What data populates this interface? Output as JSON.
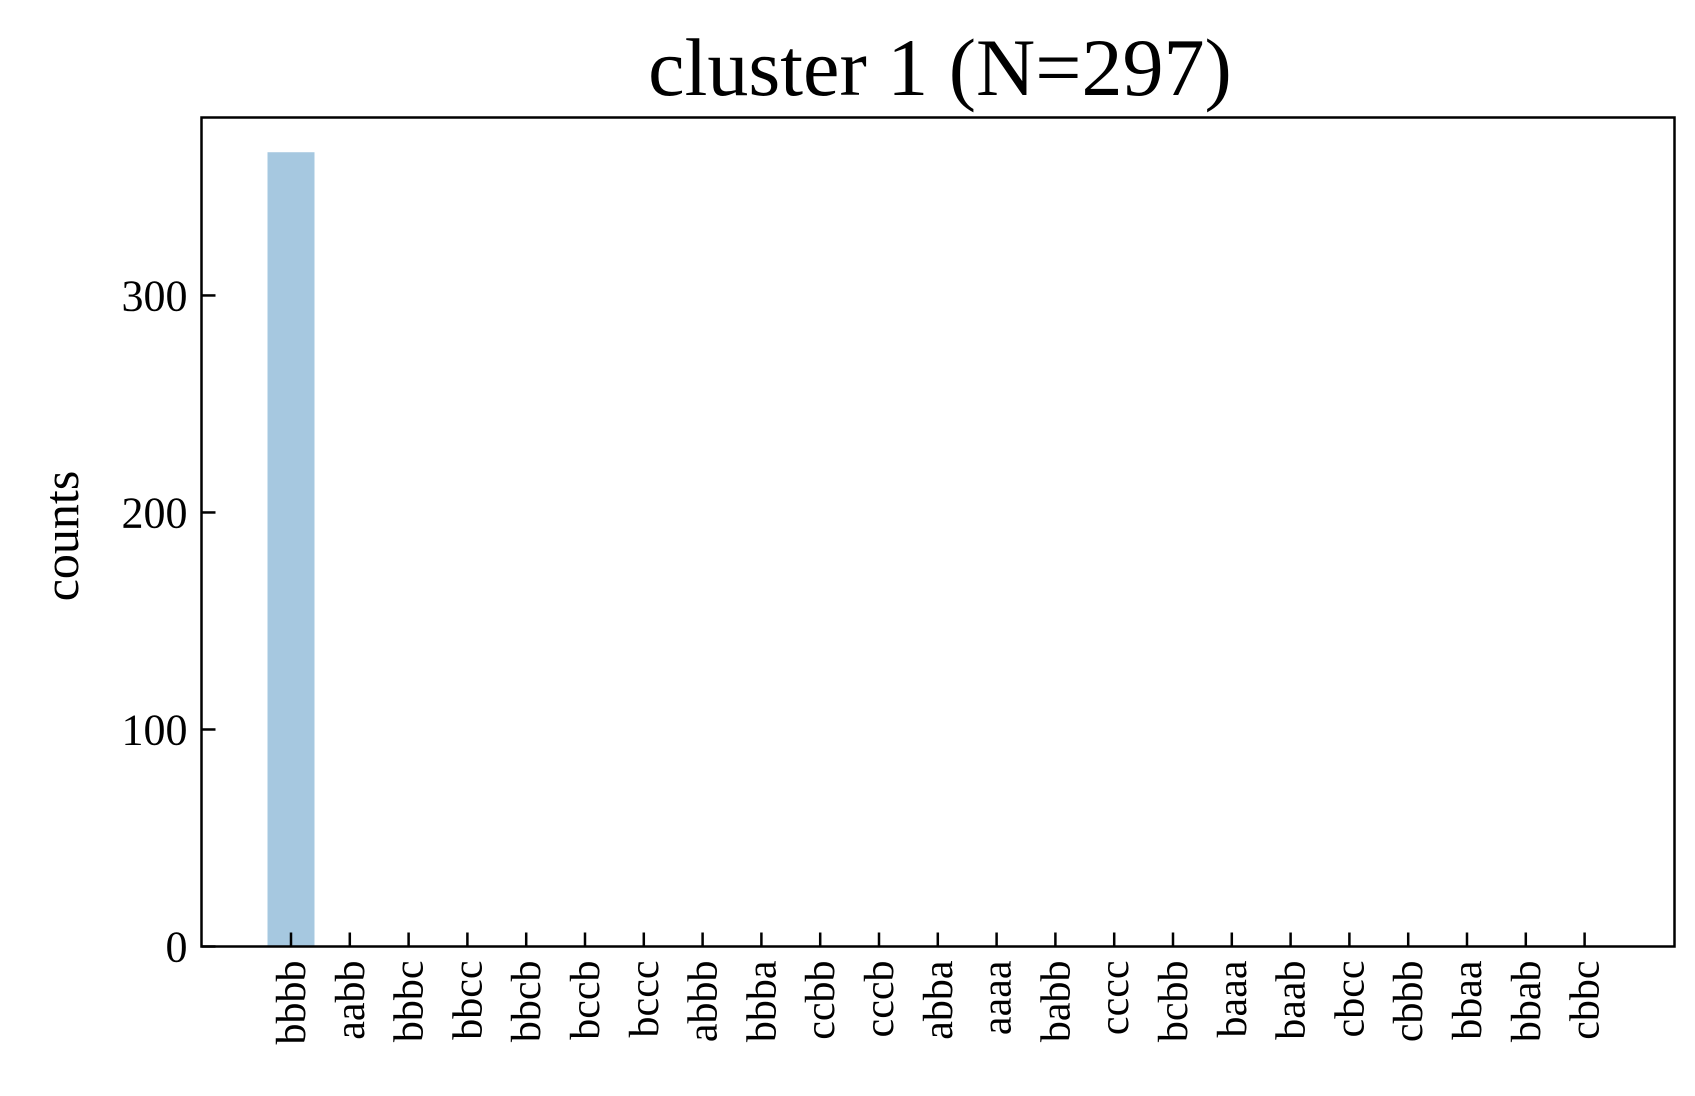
{
  "chart_data": {
    "type": "bar",
    "title": "cluster 1 (N=297)",
    "xlabel": "",
    "ylabel": "counts",
    "categories": [
      "bbbb",
      "aabb",
      "bbbc",
      "bbcc",
      "bbcb",
      "bccb",
      "bccc",
      "abbb",
      "bbba",
      "ccbb",
      "cccb",
      "abba",
      "aaaa",
      "babb",
      "cccc",
      "bcbb",
      "baaa",
      "baab",
      "cbcc",
      "cbbb",
      "bbaa",
      "bbab",
      "cbbc"
    ],
    "values": [
      366,
      0,
      0,
      0,
      0,
      0,
      0,
      0,
      0,
      0,
      0,
      0,
      0,
      0,
      0,
      0,
      0,
      0,
      0,
      0,
      0,
      0,
      0
    ],
    "yticks": [
      0,
      100,
      200,
      300
    ],
    "ylim": [
      0,
      382
    ],
    "bar_color": "#a6c8e0",
    "grid": false,
    "legend": "none"
  }
}
